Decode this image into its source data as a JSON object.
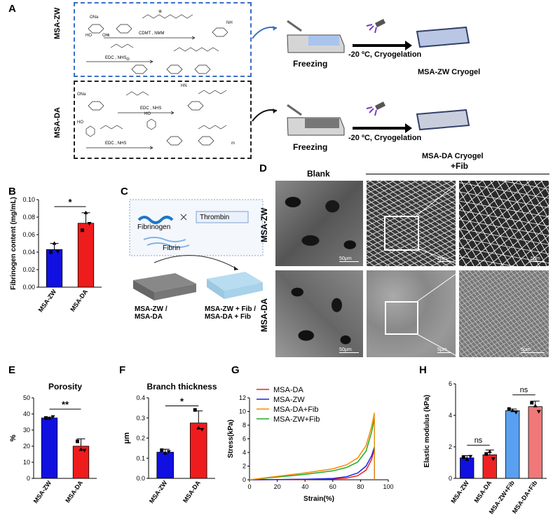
{
  "panels": {
    "A": "A",
    "B": "B",
    "C": "C",
    "D": "D",
    "E": "E",
    "F": "F",
    "G": "G",
    "H": "H"
  },
  "panelA": {
    "row1_side": "MSA-ZW",
    "row2_side": "MSA-DA",
    "row1_reagents": [
      "CDMT , NMM",
      "EDC , NHS"
    ],
    "row2_reagents": [
      "EDC , NHS",
      "EDC , NHS"
    ],
    "freezing": "Freezing",
    "cryogelation": "-20 ºC,  Cryogelation",
    "product1": "MSA-ZW Cryogel",
    "product2": "MSA-DA Cryogel"
  },
  "panelC": {
    "fibrinogen": "Fibrinogen",
    "thrombin": "Thrombin",
    "fibrin": "Fibrin",
    "left_label": [
      "MSA-ZW /",
      "MSA-DA"
    ],
    "right_label": [
      "MSA-ZW + Fib /",
      "MSA-DA + Fib"
    ]
  },
  "panelD": {
    "col_blank": "Blank",
    "col_fib": "+Fib",
    "row1": "MSA-ZW",
    "row2": "MSA-DA",
    "scalebars": [
      "50μm",
      "2μm",
      "5μm",
      "50μm",
      "5μm",
      "5μm"
    ]
  },
  "chart_data": [
    {
      "panel": "B",
      "type": "bar",
      "categories": [
        "MSA-ZW",
        "MSA-DA"
      ],
      "values": [
        0.043,
        0.073
      ],
      "errors": [
        0.007,
        0.012
      ],
      "points": [
        [
          0.04,
          0.05,
          0.04
        ],
        [
          0.065,
          0.085,
          0.072
        ]
      ],
      "colors": [
        "#1010e0",
        "#ee1c1c"
      ],
      "ylabel": "Fibrinogen content (mg/mL)",
      "ylim": [
        0,
        0.1
      ],
      "yticks": [
        "0.00",
        "0.02",
        "0.04",
        "0.06",
        "0.08",
        "0.10"
      ],
      "significance": "*"
    },
    {
      "panel": "E",
      "type": "bar",
      "title": "Porosity",
      "categories": [
        "MSA-ZW",
        "MSA-DA"
      ],
      "values": [
        37.5,
        20
      ],
      "errors": [
        0.5,
        4.5
      ],
      "points": [
        [
          37.5,
          37.3,
          37.8
        ],
        [
          23,
          18,
          17
        ]
      ],
      "colors": [
        "#1010e0",
        "#ee1c1c"
      ],
      "ylabel": "%",
      "ylim": [
        0,
        50
      ],
      "yticks": [
        "0",
        "10",
        "20",
        "30",
        "40",
        "50"
      ],
      "significance": "**"
    },
    {
      "panel": "F",
      "type": "bar",
      "title": "Branch thickness",
      "categories": [
        "MSA-ZW",
        "MSA-DA"
      ],
      "values": [
        0.13,
        0.275
      ],
      "errors": [
        0.015,
        0.06
      ],
      "points": [
        [
          0.14,
          0.125,
          0.13
        ],
        [
          0.34,
          0.25,
          0.24
        ]
      ],
      "colors": [
        "#1010e0",
        "#ee1c1c"
      ],
      "ylabel": "μm",
      "ylim": [
        0,
        0.4
      ],
      "yticks": [
        "0.0",
        "0.1",
        "0.2",
        "0.3",
        "0.4"
      ],
      "significance": "*"
    },
    {
      "panel": "G",
      "type": "line",
      "xlabel": "Strain(%)",
      "ylabel": "Stress(kPa)",
      "xlim": [
        0,
        100
      ],
      "ylim": [
        0,
        12
      ],
      "xticks": [
        "0",
        "20",
        "40",
        "60",
        "80",
        "100"
      ],
      "yticks": [
        "0",
        "2",
        "4",
        "6",
        "8",
        "10",
        "12"
      ],
      "series": [
        {
          "name": "MSA-DA",
          "color": "#ee2222",
          "x": [
            0,
            20,
            40,
            60,
            70,
            78,
            84,
            88,
            90
          ],
          "y": [
            0,
            0.02,
            0.05,
            0.12,
            0.25,
            0.6,
            1.4,
            3.0,
            4.5
          ]
        },
        {
          "name": "MSA-ZW",
          "color": "#2222dd",
          "x": [
            0,
            20,
            40,
            60,
            70,
            78,
            84,
            88,
            90
          ],
          "y": [
            0,
            0.03,
            0.08,
            0.2,
            0.45,
            1.0,
            2.0,
            3.5,
            4.8
          ]
        },
        {
          "name": "MSA-ZW+Fib",
          "color": "#22aa22",
          "x": [
            0,
            20,
            40,
            60,
            70,
            78,
            84,
            88,
            90
          ],
          "y": [
            0,
            0.4,
            0.8,
            1.3,
            1.8,
            2.6,
            4.2,
            7.0,
            9.0
          ]
        },
        {
          "name": "MSA-DA+Fib",
          "color": "#ff8800",
          "x": [
            0,
            20,
            40,
            60,
            70,
            78,
            84,
            88,
            90
          ],
          "y": [
            0,
            0.5,
            1.0,
            1.6,
            2.2,
            3.2,
            5.0,
            7.8,
            9.8
          ]
        }
      ]
    },
    {
      "panel": "H",
      "type": "bar",
      "categories": [
        "MSA-ZW",
        "MSA-DA",
        "MSA-ZW+Fib",
        "MSA-DA+Fib"
      ],
      "values": [
        1.3,
        1.5,
        4.3,
        4.55
      ],
      "errors": [
        0.15,
        0.3,
        0.1,
        0.35
      ],
      "points": [
        [
          1.35,
          1.2,
          1.35
        ],
        [
          1.55,
          1.7,
          1.2
        ],
        [
          4.4,
          4.3,
          4.15
        ],
        [
          4.8,
          4.6,
          4.2
        ]
      ],
      "colors": [
        "#1010e0",
        "#ee2222",
        "#5aa0f0",
        "#f07878"
      ],
      "ylabel": "Elastic modulus (kPa)",
      "ylim": [
        0,
        6
      ],
      "yticks": [
        "0",
        "2",
        "4",
        "6"
      ],
      "significance_pairs": [
        "ns",
        "ns"
      ]
    }
  ]
}
